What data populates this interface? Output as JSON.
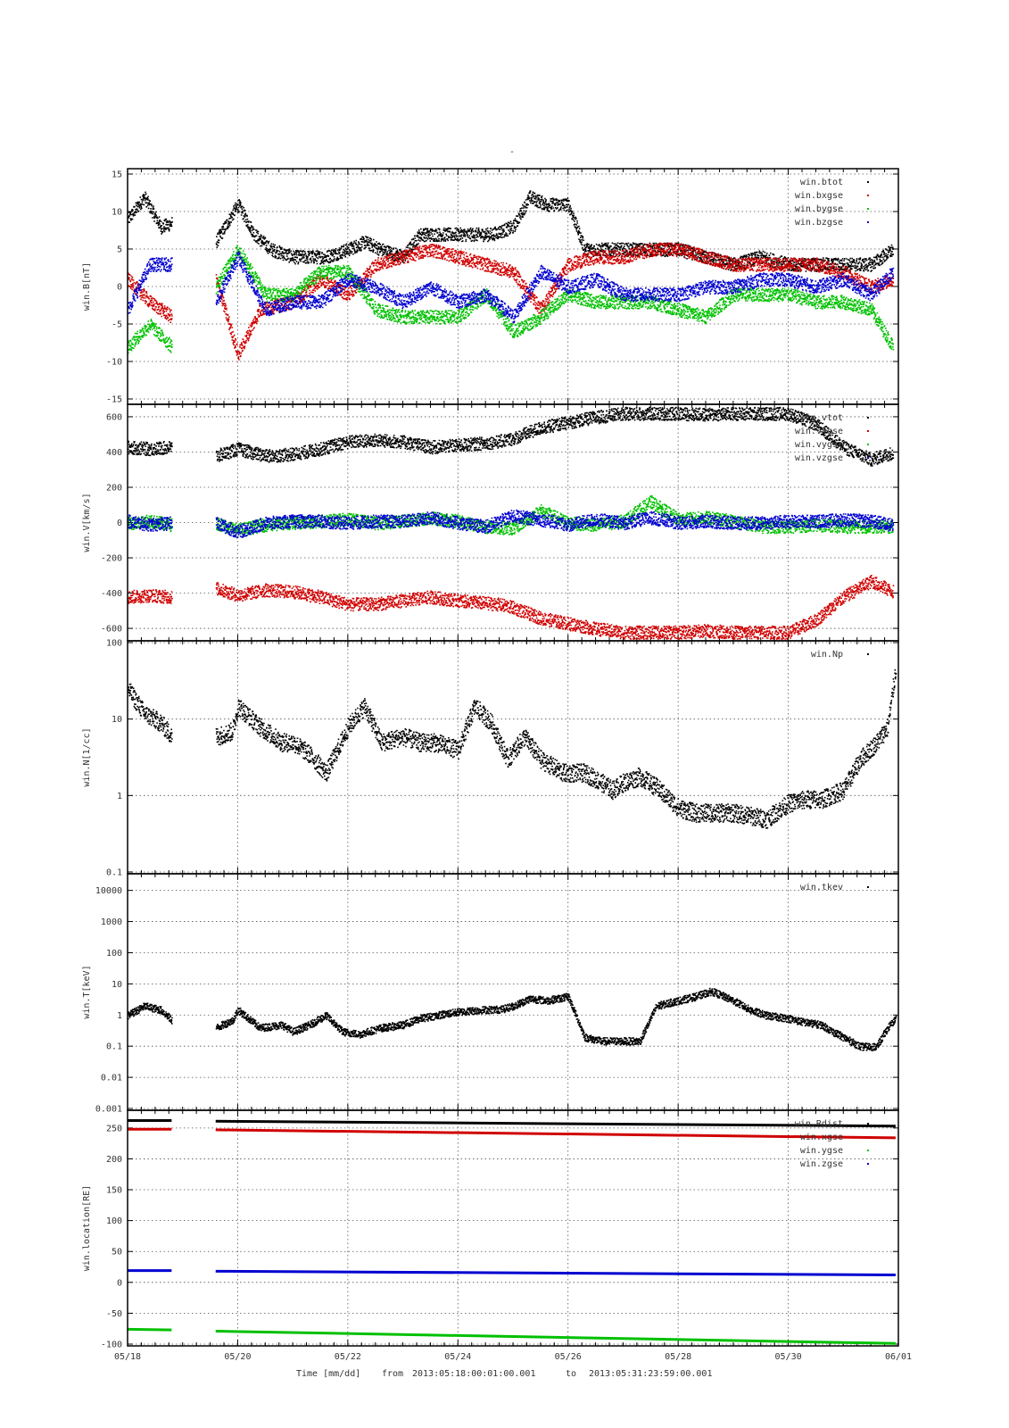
{
  "figure": {
    "top_mark": "-",
    "x_label": "Time [mm/dd]",
    "from_label": "from",
    "from_value": "2013:05:18:00:01:00.001",
    "to_label": "to",
    "to_value": "2013:05:31:23:59:00.001",
    "x_ticks": [
      "05/18",
      "05/20",
      "05/22",
      "05/24",
      "05/26",
      "05/28",
      "05/30",
      "06/01"
    ]
  },
  "chart_data": [
    {
      "type": "scatter",
      "ylabel": "win.B[nT]",
      "ylim": [
        -15,
        15
      ],
      "yscale": "linear",
      "y_ticks": [
        15,
        10,
        5,
        0,
        -5,
        -10,
        -15
      ],
      "y_tick_labels": [
        "15",
        "10",
        "5",
        "0",
        "-5",
        "-10",
        "-15"
      ],
      "x_unit": "days since 05/18",
      "grid": true,
      "legend": "top-right",
      "series": [
        {
          "name": "win.btot",
          "color": "#000000",
          "x": [
            0,
            0.3,
            0.6,
            1,
            1.6,
            2,
            2.3,
            2.6,
            3,
            3.6,
            4,
            4.3,
            4.6,
            5,
            5.3,
            5.6,
            6,
            6.6,
            7,
            7.3,
            7.6,
            8,
            8.3,
            8.6,
            9,
            9.6,
            10,
            10.5,
            11,
            11.5,
            12,
            12.5,
            13,
            13.5,
            13.9
          ],
          "y": [
            9,
            12,
            8,
            9,
            6,
            11,
            7,
            5,
            4,
            4,
            5,
            6,
            5,
            4,
            7,
            7,
            7,
            7,
            8,
            12,
            11,
            11,
            5,
            5,
            5,
            5,
            5,
            4,
            3,
            4,
            3,
            3,
            3,
            3,
            5
          ]
        },
        {
          "name": "win.bxgse",
          "color": "#d00000",
          "x": [
            0,
            0.4,
            0.8,
            1.6,
            2,
            2.4,
            3,
            3.5,
            4,
            4.5,
            5,
            5.5,
            6,
            6.5,
            7,
            7.5,
            8,
            8.5,
            9,
            9.5,
            10,
            10.5,
            11,
            11.5,
            12,
            12.5,
            13,
            13.5,
            13.9
          ],
          "y": [
            1,
            -2,
            -4,
            1,
            -9,
            -3,
            -2,
            1,
            -1,
            3,
            4,
            5,
            4,
            3,
            2,
            -3,
            3,
            4,
            4,
            5,
            5,
            4,
            3,
            3,
            3,
            3,
            2,
            0,
            1
          ]
        },
        {
          "name": "win.bygse",
          "color": "#00c000",
          "x": [
            0,
            0.4,
            0.8,
            1.6,
            2,
            2.5,
            3,
            3.5,
            4,
            4.5,
            5,
            5.5,
            6,
            6.5,
            7,
            7.5,
            8,
            8.5,
            9,
            9.5,
            10,
            10.5,
            11,
            11.5,
            12,
            12.5,
            13,
            13.5,
            13.9
          ],
          "y": [
            -8,
            -5,
            -8,
            0,
            5,
            -1,
            -1,
            2,
            2,
            -3,
            -4,
            -4,
            -4,
            -1,
            -6,
            -4,
            -1,
            -2,
            -2,
            -2,
            -3,
            -4,
            -1,
            -1,
            -1,
            -2,
            -2,
            -3,
            -8
          ]
        },
        {
          "name": "win.bzgse",
          "color": "#0000d0",
          "x": [
            0,
            0.4,
            0.8,
            1.6,
            2,
            2.5,
            3,
            3.5,
            4,
            4.5,
            5,
            5.5,
            6,
            6.5,
            7,
            7.5,
            8,
            8.5,
            9,
            9.5,
            10,
            10.5,
            11,
            11.5,
            12,
            12.5,
            13,
            13.5,
            13.9
          ],
          "y": [
            -3,
            3,
            3,
            -2,
            4,
            -3,
            -2,
            -2,
            1,
            0,
            -2,
            0,
            -2,
            -1,
            -4,
            2,
            0,
            1,
            -1,
            -1,
            -1,
            0,
            0,
            1,
            1,
            0,
            1,
            -1,
            2
          ]
        }
      ]
    },
    {
      "type": "scatter",
      "ylabel": "win.V[km/s]",
      "ylim": [
        -620,
        620
      ],
      "yscale": "linear",
      "y_ticks": [
        600,
        400,
        200,
        0,
        -200,
        -400,
        -600
      ],
      "y_tick_labels": [
        "600",
        "400",
        "200",
        "0",
        "-200",
        "-400",
        "-600"
      ],
      "x_unit": "days since 05/18",
      "grid": true,
      "legend": "top-right",
      "series": [
        {
          "name": "win.vtot",
          "color": "#000000",
          "x": [
            0,
            0.4,
            0.8,
            1.6,
            2,
            2.5,
            3,
            3.5,
            4,
            4.5,
            5,
            5.5,
            6,
            6.7,
            7,
            7.5,
            8,
            8.5,
            9,
            9.5,
            10,
            10.5,
            11,
            11.5,
            12,
            12.5,
            13,
            13.5,
            13.9
          ],
          "y": [
            430,
            420,
            430,
            380,
            420,
            380,
            390,
            420,
            460,
            470,
            460,
            430,
            440,
            460,
            480,
            540,
            570,
            600,
            620,
            620,
            620,
            615,
            620,
            620,
            620,
            560,
            430,
            360,
            400
          ]
        },
        {
          "name": "win.vxgse",
          "color": "#d00000",
          "x": [
            0,
            0.4,
            0.8,
            1.6,
            2,
            2.5,
            3,
            3.5,
            4,
            4.5,
            5,
            5.5,
            6,
            6.7,
            7,
            7.5,
            8,
            8.5,
            9,
            9.5,
            10,
            10.5,
            11,
            11.5,
            12,
            12.5,
            13,
            13.5,
            13.9
          ],
          "y": [
            -420,
            -410,
            -420,
            -370,
            -410,
            -380,
            -390,
            -420,
            -460,
            -460,
            -440,
            -420,
            -440,
            -460,
            -480,
            -540,
            -570,
            -600,
            -620,
            -620,
            -620,
            -610,
            -620,
            -620,
            -620,
            -550,
            -420,
            -330,
            -390
          ]
        },
        {
          "name": "win.vygse",
          "color": "#00c000",
          "x": [
            0,
            0.4,
            0.8,
            1.6,
            2,
            2.5,
            3,
            3.5,
            4,
            4.5,
            5,
            5.5,
            6,
            6.5,
            7,
            7.5,
            8,
            8.5,
            9,
            9.5,
            10,
            10.5,
            11,
            11.5,
            12,
            12.5,
            13,
            13.5,
            13.9
          ],
          "y": [
            0,
            10,
            -10,
            0,
            -40,
            -10,
            0,
            10,
            20,
            0,
            10,
            30,
            10,
            -20,
            -30,
            70,
            0,
            -10,
            10,
            120,
            20,
            30,
            10,
            -20,
            -20,
            -10,
            -20,
            -20,
            -20
          ]
        },
        {
          "name": "win.vzgse",
          "color": "#0000d0",
          "x": [
            0,
            0.4,
            0.8,
            1.6,
            2,
            2.5,
            3,
            3.5,
            4,
            4.5,
            5,
            5.5,
            6,
            6.5,
            7,
            7.5,
            8,
            8.5,
            9,
            9.5,
            10,
            10.5,
            11,
            11.5,
            12,
            12.5,
            13,
            13.5,
            13.9
          ],
          "y": [
            10,
            -10,
            0,
            0,
            -50,
            0,
            10,
            10,
            0,
            10,
            10,
            30,
            0,
            -20,
            40,
            20,
            -10,
            20,
            0,
            30,
            0,
            10,
            0,
            0,
            10,
            10,
            20,
            10,
            -10
          ]
        }
      ]
    },
    {
      "type": "scatter",
      "ylabel": "win.N[1/cc]",
      "ylim": [
        0.1,
        100
      ],
      "yscale": "log",
      "y_ticks": [
        100,
        10,
        1,
        0.1
      ],
      "y_tick_labels": [
        "100",
        "10",
        "1",
        "0.1"
      ],
      "x_unit": "days since 05/18",
      "grid": true,
      "legend": "top-right",
      "series": [
        {
          "name": "win.Np",
          "color": "#000000",
          "x": [
            0,
            0.3,
            0.6,
            0.8,
            1.6,
            1.9,
            2,
            2.4,
            2.8,
            3,
            3.3,
            3.6,
            3.8,
            4,
            4.3,
            4.6,
            5,
            5.3,
            5.6,
            6,
            6.3,
            6.6,
            6.9,
            7.2,
            7.5,
            7.9,
            8.3,
            8.6,
            8.8,
            9,
            9.3,
            9.6,
            10,
            10.3,
            10.6,
            11,
            11.3,
            11.6,
            12,
            12.3,
            12.6,
            13,
            13.3,
            13.6,
            13.8,
            13.95
          ],
          "y": [
            25,
            12,
            9,
            6,
            6,
            7,
            15,
            8,
            5,
            5,
            3.5,
            2,
            4,
            8,
            15,
            5,
            6,
            5,
            5,
            4,
            15,
            9,
            3,
            6,
            3,
            2,
            2,
            1.5,
            1.2,
            1.5,
            1.8,
            1.3,
            0.7,
            0.6,
            0.6,
            0.6,
            0.55,
            0.5,
            0.8,
            0.9,
            0.9,
            1.2,
            3,
            5,
            8,
            50
          ]
        }
      ]
    },
    {
      "type": "scatter",
      "ylabel": "win.T[keV]",
      "ylim": [
        0.001,
        30000
      ],
      "yscale": "log",
      "y_ticks": [
        10000,
        1000,
        100,
        10,
        1,
        0.1,
        0.01,
        0.001
      ],
      "y_tick_labels": [
        "10000",
        "1000",
        "100",
        "10",
        "1",
        "0.1",
        "0.01",
        "0.001"
      ],
      "x_unit": "days since 05/18",
      "grid": true,
      "legend": "top-right",
      "series": [
        {
          "name": "win.tkev",
          "color": "#000000",
          "x": [
            0,
            0.3,
            0.6,
            0.8,
            1.6,
            1.9,
            2,
            2.4,
            2.8,
            3,
            3.3,
            3.6,
            3.9,
            4.2,
            4.6,
            5,
            5.3,
            5.6,
            6,
            6.4,
            6.8,
            7,
            7.3,
            7.6,
            8,
            8.3,
            8.6,
            9,
            9.3,
            9.6,
            10,
            10.3,
            10.6,
            11,
            11.3,
            11.6,
            12,
            12.3,
            12.6,
            12.8,
            13,
            13.3,
            13.6,
            13.8,
            13.95
          ],
          "y": [
            1,
            2,
            1.5,
            0.7,
            0.4,
            0.7,
            1.5,
            0.4,
            0.5,
            0.3,
            0.5,
            1,
            0.3,
            0.25,
            0.4,
            0.5,
            0.8,
            1,
            1.3,
            1.5,
            1.6,
            2,
            3.5,
            3,
            4,
            0.2,
            0.15,
            0.15,
            0.15,
            2,
            3,
            4,
            6,
            3,
            1.5,
            1,
            0.8,
            0.6,
            0.5,
            0.3,
            0.2,
            0.1,
            0.1,
            0.4,
            0.8
          ]
        }
      ]
    },
    {
      "type": "line",
      "ylabel": "win.location[RE]",
      "ylim": [
        -100,
        270
      ],
      "yscale": "linear",
      "y_ticks": [
        250,
        200,
        150,
        100,
        50,
        0,
        -50,
        -100
      ],
      "y_tick_labels": [
        "250",
        "200",
        "150",
        "100",
        "50",
        "0",
        "-50",
        "-100"
      ],
      "x_unit": "days since 05/18",
      "grid": true,
      "legend": "top-right",
      "gap": [
        0.8,
        1.6
      ],
      "series": [
        {
          "name": "win.Rdist",
          "color": "#000000",
          "x": [
            0,
            0.8,
            1.6,
            13.95
          ],
          "y": [
            262,
            262,
            261,
            253
          ]
        },
        {
          "name": "win.xgse",
          "color": "#d00000",
          "x": [
            0,
            0.8,
            1.6,
            13.95
          ],
          "y": [
            248,
            248,
            247,
            234
          ]
        },
        {
          "name": "win.ygse",
          "color": "#00c000",
          "x": [
            0,
            0.8,
            1.6,
            13.95
          ],
          "y": [
            -76,
            -77,
            -79,
            -99
          ]
        },
        {
          "name": "win.zgse",
          "color": "#0000d0",
          "x": [
            0,
            0.8,
            1.6,
            13.95
          ],
          "y": [
            19,
            19,
            18,
            12
          ]
        }
      ]
    }
  ]
}
